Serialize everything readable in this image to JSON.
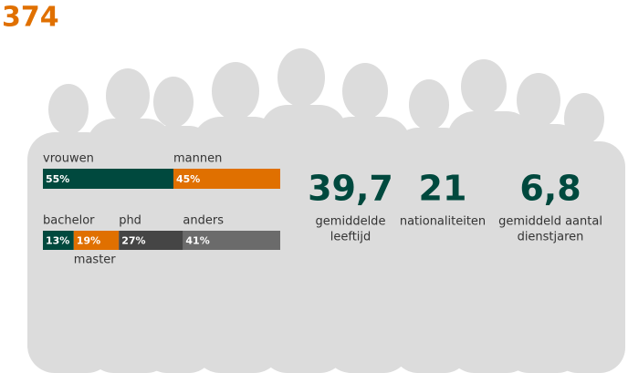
{
  "headline": "374",
  "gender": {
    "segments": [
      {
        "name": "vrouwen",
        "value": 55,
        "value_label": "55%",
        "color": "#00493e"
      },
      {
        "name": "mannen",
        "value": 45,
        "value_label": "45%",
        "color": "#e07000"
      }
    ]
  },
  "education": {
    "segments": [
      {
        "name": "bachelor",
        "value": 13,
        "value_label": "13%",
        "color": "#00493e"
      },
      {
        "name": "master",
        "value": 19,
        "value_label": "19%",
        "color": "#e07000"
      },
      {
        "name": "phd",
        "value": 27,
        "value_label": "27%",
        "color": "#454545"
      },
      {
        "name": "anders",
        "value": 41,
        "value_label": "41%",
        "color": "#6b6b6b"
      }
    ]
  },
  "stats": [
    {
      "value": "39,7",
      "label": [
        "gemiddelde",
        "leeftijd"
      ]
    },
    {
      "value": "21",
      "label": [
        "nationaliteiten"
      ]
    },
    {
      "value": "6,8",
      "label": [
        "gemiddeld aantal",
        "dienstjaren"
      ]
    }
  ]
}
